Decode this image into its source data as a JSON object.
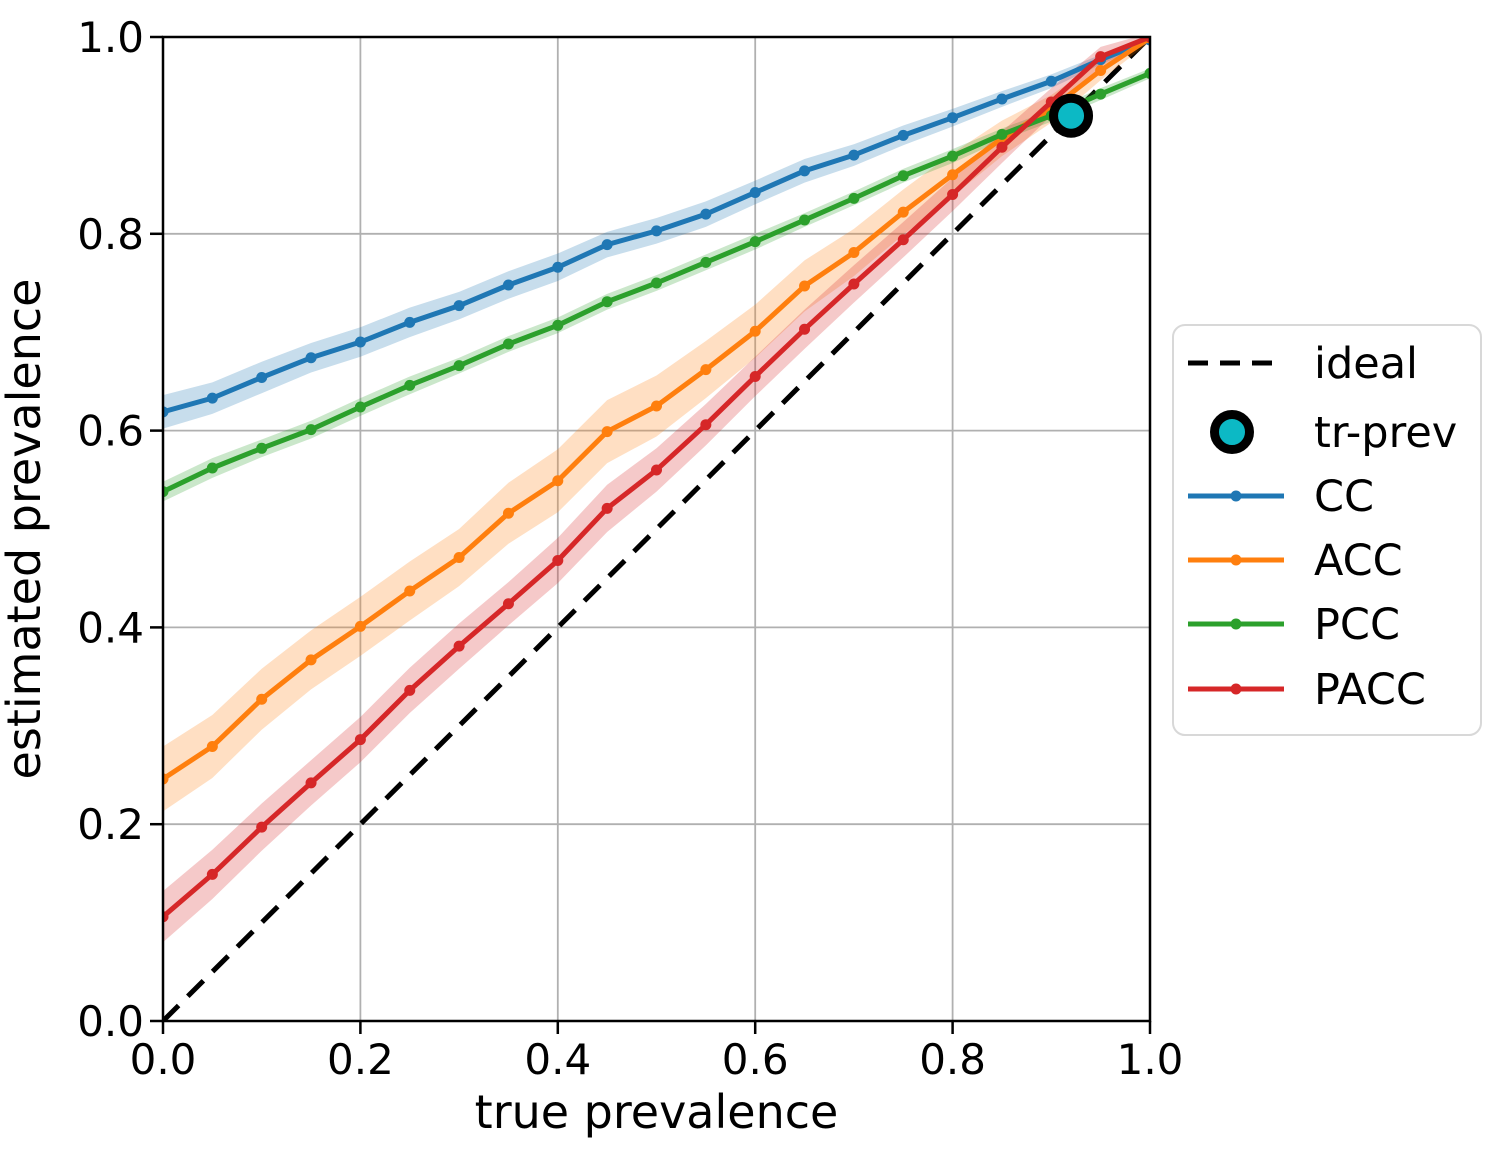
{
  "chart_data": {
    "type": "line",
    "title": "",
    "xlabel": "true prevalence",
    "ylabel": "estimated prevalence",
    "xlim": [
      0.0,
      1.0
    ],
    "ylim": [
      0.0,
      1.0
    ],
    "grid": true,
    "grid_color": "#b0b0b0",
    "x_ticks": [
      "0.0",
      "0.2",
      "0.4",
      "0.6",
      "0.8",
      "1.0"
    ],
    "y_ticks": [
      "0.0",
      "0.2",
      "0.4",
      "0.6",
      "0.8",
      "1.0"
    ],
    "x_tick_values": [
      0.0,
      0.2,
      0.4,
      0.6,
      0.8,
      1.0
    ],
    "y_tick_values": [
      0.0,
      0.2,
      0.4,
      0.6,
      0.8,
      1.0
    ],
    "x": [
      0.0,
      0.05,
      0.1,
      0.15,
      0.2,
      0.25,
      0.3,
      0.35,
      0.4,
      0.45,
      0.5,
      0.55,
      0.6,
      0.65,
      0.7,
      0.75,
      0.8,
      0.85,
      0.9,
      0.95,
      1.0
    ],
    "band_alpha": 0.25,
    "series": [
      {
        "name": "CC",
        "color": "#1f77b4",
        "values": [
          0.619,
          0.633,
          0.654,
          0.674,
          0.69,
          0.71,
          0.727,
          0.748,
          0.766,
          0.789,
          0.803,
          0.82,
          0.842,
          0.864,
          0.88,
          0.9,
          0.918,
          0.937,
          0.955,
          0.977,
          0.997
        ],
        "band_halfwidth": [
          0.017,
          0.016,
          0.016,
          0.015,
          0.015,
          0.015,
          0.014,
          0.014,
          0.014,
          0.013,
          0.013,
          0.013,
          0.012,
          0.012,
          0.011,
          0.01,
          0.009,
          0.008,
          0.007,
          0.005,
          0.003
        ]
      },
      {
        "name": "ACC",
        "color": "#ff7f0e",
        "values": [
          0.246,
          0.279,
          0.327,
          0.367,
          0.401,
          0.437,
          0.471,
          0.516,
          0.549,
          0.599,
          0.625,
          0.662,
          0.701,
          0.747,
          0.781,
          0.822,
          0.86,
          0.897,
          0.927,
          0.966,
          0.999
        ],
        "band_halfwidth": [
          0.033,
          0.032,
          0.031,
          0.03,
          0.03,
          0.03,
          0.029,
          0.031,
          0.032,
          0.032,
          0.031,
          0.029,
          0.027,
          0.026,
          0.024,
          0.023,
          0.022,
          0.018,
          0.014,
          0.01,
          0.004
        ]
      },
      {
        "name": "PCC",
        "color": "#2ca02c",
        "values": [
          0.538,
          0.562,
          0.582,
          0.601,
          0.624,
          0.646,
          0.666,
          0.688,
          0.707,
          0.731,
          0.75,
          0.771,
          0.792,
          0.814,
          0.836,
          0.859,
          0.879,
          0.901,
          0.92,
          0.942,
          0.963
        ],
        "band_halfwidth": [
          0.01,
          0.01,
          0.009,
          0.009,
          0.009,
          0.009,
          0.008,
          0.008,
          0.008,
          0.008,
          0.008,
          0.008,
          0.008,
          0.007,
          0.007,
          0.007,
          0.007,
          0.006,
          0.006,
          0.006,
          0.005
        ]
      },
      {
        "name": "PACC",
        "color": "#d62728",
        "values": [
          0.106,
          0.149,
          0.197,
          0.242,
          0.286,
          0.336,
          0.381,
          0.424,
          0.468,
          0.521,
          0.56,
          0.606,
          0.655,
          0.703,
          0.749,
          0.794,
          0.84,
          0.888,
          0.934,
          0.98,
          1.0
        ],
        "band_halfwidth": [
          0.026,
          0.025,
          0.024,
          0.023,
          0.023,
          0.023,
          0.023,
          0.022,
          0.023,
          0.024,
          0.022,
          0.021,
          0.02,
          0.02,
          0.019,
          0.018,
          0.017,
          0.016,
          0.014,
          0.01,
          0.004
        ]
      }
    ],
    "ideal": {
      "label": "ideal",
      "color": "#000000",
      "from": [
        0.0,
        0.0
      ],
      "to": [
        1.0,
        1.0
      ],
      "style": "dashed"
    },
    "tr_prev": {
      "label": "tr-prev",
      "x": 0.92,
      "y": 0.92,
      "fill": "#0cb9c5",
      "edge": "#000000"
    },
    "legend": {
      "position": "center right, outside axes",
      "entries": [
        {
          "label": "ideal",
          "sample": "dashed-line",
          "color": "#000000"
        },
        {
          "label": "tr-prev",
          "sample": "ring-marker",
          "color": "#0cb9c5"
        },
        {
          "label": "CC",
          "sample": "line-marker",
          "color": "#1f77b4"
        },
        {
          "label": "ACC",
          "sample": "line-marker",
          "color": "#ff7f0e"
        },
        {
          "label": "PCC",
          "sample": "line-marker",
          "color": "#2ca02c"
        },
        {
          "label": "PACC",
          "sample": "line-marker",
          "color": "#d62728"
        }
      ]
    }
  }
}
